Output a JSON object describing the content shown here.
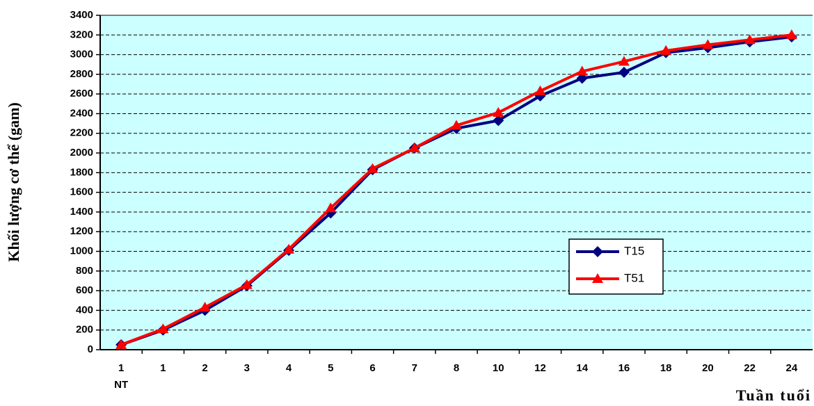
{
  "chart_data": {
    "type": "line",
    "y_label": "Khối lượng cơ thể (gam)",
    "x_label": "Tuần tuổi",
    "categories": [
      "1\nNT",
      "1",
      "2",
      "3",
      "4",
      "5",
      "6",
      "7",
      "8",
      "10",
      "12",
      "14",
      "16",
      "18",
      "20",
      "22",
      "24"
    ],
    "series": [
      {
        "name": "T15",
        "color": "#000080",
        "marker": "diamond",
        "values": [
          50,
          200,
          400,
          650,
          1010,
          1390,
          1830,
          2050,
          2250,
          2330,
          2580,
          2760,
          2820,
          3020,
          3070,
          3130,
          3180
        ]
      },
      {
        "name": "T51",
        "color": "#ff0000",
        "marker": "triangle",
        "values": [
          50,
          210,
          430,
          660,
          1020,
          1440,
          1840,
          2050,
          2280,
          2410,
          2630,
          2830,
          2930,
          3040,
          3100,
          3150,
          3200
        ]
      }
    ],
    "ylim": [
      0,
      3400
    ],
    "yticks": [
      0,
      200,
      400,
      600,
      800,
      1000,
      1200,
      1400,
      1600,
      1800,
      2000,
      2200,
      2400,
      2600,
      2800,
      3000,
      3200,
      3400
    ],
    "grid": true,
    "plot_background": "#ccffff"
  }
}
